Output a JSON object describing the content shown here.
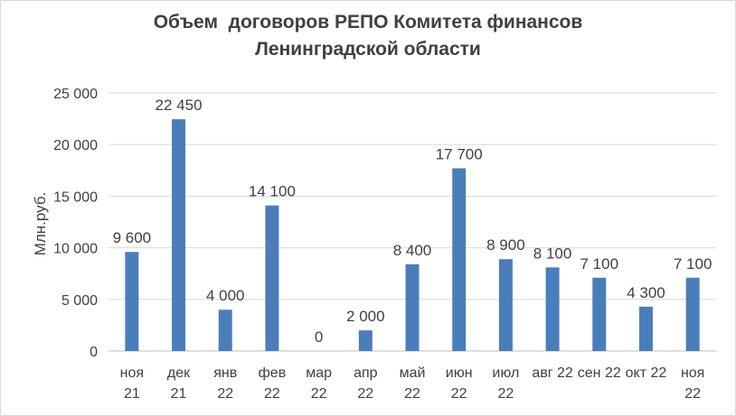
{
  "chart_data": {
    "type": "bar",
    "title_lines": [
      "Объем  договоров РЕПО Комитета финансов",
      "Ленинградской области"
    ],
    "ylabel": "Млн.руб.",
    "xlabel": "",
    "categories": [
      [
        "ноя",
        "21"
      ],
      [
        "дек",
        "21"
      ],
      [
        "янв",
        "22"
      ],
      [
        "фев",
        "22"
      ],
      [
        "мар",
        "22"
      ],
      [
        "апр",
        "22"
      ],
      [
        "май",
        "22"
      ],
      [
        "июн",
        "22"
      ],
      [
        "июл",
        "22"
      ],
      [
        "авг 22"
      ],
      [
        "сен 22"
      ],
      [
        "окт 22"
      ],
      [
        "ноя",
        "22"
      ]
    ],
    "values": [
      9600,
      22450,
      4000,
      14100,
      0,
      2000,
      8400,
      17700,
      8900,
      8100,
      7100,
      4300,
      7100
    ],
    "data_labels": [
      "9 600",
      "22 450",
      "4 000",
      "14 100",
      "0",
      "2 000",
      "8 400",
      "17 700",
      "8 900",
      "8 100",
      "7 100",
      "4 300",
      "7 100"
    ],
    "yticks": [
      0,
      5000,
      10000,
      15000,
      20000,
      25000
    ],
    "ytick_labels": [
      "0",
      "5 000",
      "10 000",
      "15 000",
      "20 000",
      "25 000"
    ],
    "ylim": [
      0,
      25000
    ],
    "grid": true,
    "legend": "none",
    "bar_color": "#4a7ebb",
    "grid_color": "#d9d9d9"
  }
}
